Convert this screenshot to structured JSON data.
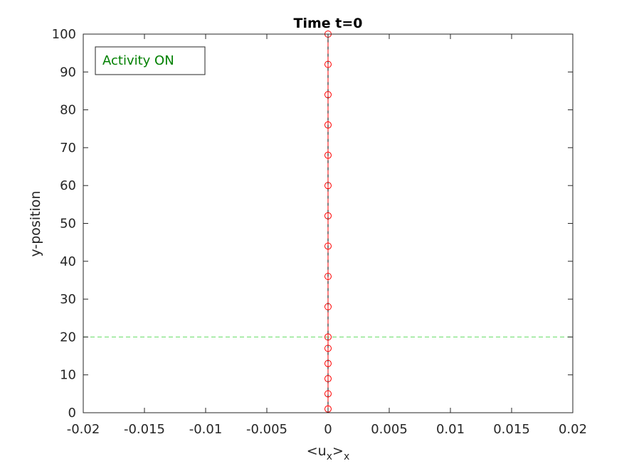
{
  "chart_data": {
    "type": "line",
    "title": "Time t=0",
    "xlabel_main": "<u",
    "xlabel_sub1": "x",
    "xlabel_mid": ">",
    "xlabel_sub2": "x",
    "ylabel": "y-position",
    "xlim": [
      -0.02,
      0.02
    ],
    "ylim": [
      0,
      100
    ],
    "x_ticks": [
      -0.02,
      -0.015,
      -0.01,
      -0.005,
      0,
      0.005,
      0.01,
      0.015,
      0.02
    ],
    "x_tick_labels": [
      "-0.02",
      "-0.015",
      "-0.01",
      "-0.005",
      "0",
      "0.005",
      "0.01",
      "0.015",
      "0.02"
    ],
    "y_ticks": [
      0,
      10,
      20,
      30,
      40,
      50,
      60,
      70,
      80,
      90,
      100
    ],
    "y_tick_labels": [
      "0",
      "10",
      "20",
      "30",
      "40",
      "50",
      "60",
      "70",
      "80",
      "90",
      "100"
    ],
    "grid": false,
    "series": [
      {
        "style": "line",
        "color": "#000000",
        "x": [
          0,
          0
        ],
        "y": [
          0,
          100
        ]
      },
      {
        "style": "dashed-line-circle-markers",
        "color": "#ff0000",
        "x": [
          0,
          0,
          0,
          0,
          0,
          0,
          0,
          0,
          0,
          0,
          0,
          0,
          0,
          0,
          0,
          0
        ],
        "y": [
          1,
          5,
          9,
          13,
          17,
          20,
          28,
          36,
          44,
          52,
          60,
          68,
          76,
          84,
          92,
          100
        ]
      }
    ],
    "reference_line": {
      "orientation": "horizontal",
      "y": 20,
      "color": "#66dd66",
      "style": "dashed"
    },
    "annotation": {
      "text": "Activity ON",
      "color": "#008000",
      "position": "top-left"
    }
  }
}
